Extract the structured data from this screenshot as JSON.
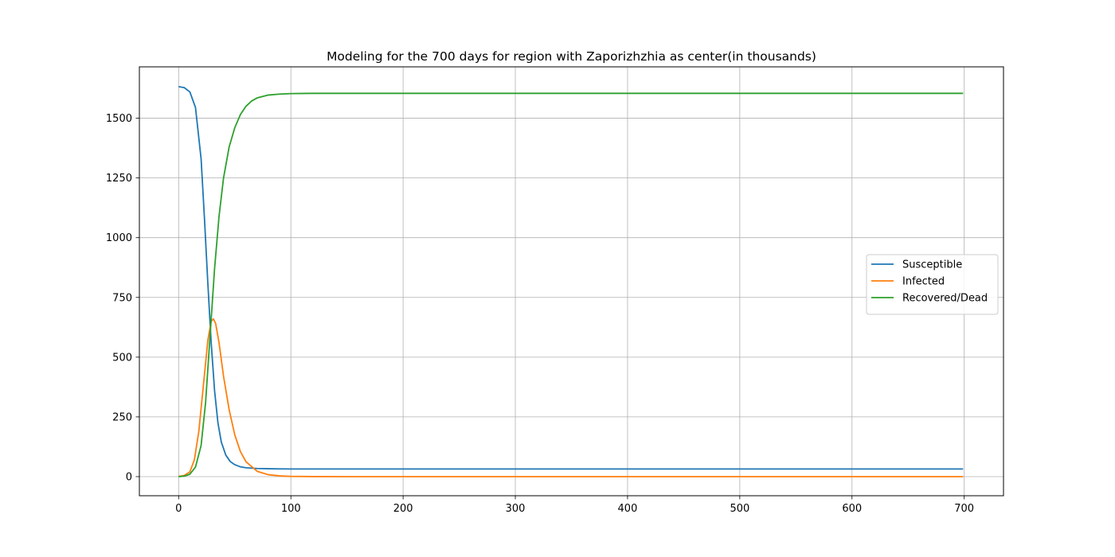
{
  "chart_data": {
    "type": "line",
    "title": "Modeling for the 700 days for region with Zaporizhzhia as center(in thousands)",
    "xlabel": "",
    "ylabel": "",
    "xlim": [
      -35,
      735
    ],
    "ylim": [
      -80,
      1715
    ],
    "xticks": [
      0,
      100,
      200,
      300,
      400,
      500,
      600,
      700
    ],
    "yticks": [
      0,
      250,
      500,
      750,
      1000,
      1250,
      1500
    ],
    "grid": true,
    "legend_position": "center-right",
    "series": [
      {
        "name": "Susceptible",
        "color": "#1f77b4",
        "x": [
          0,
          5,
          10,
          15,
          20,
          23,
          26,
          29,
          32,
          35,
          38,
          42,
          46,
          50,
          55,
          60,
          70,
          80,
          90,
          100,
          120,
          150,
          200,
          300,
          400,
          500,
          600,
          699
        ],
        "y": [
          1632,
          1628,
          1610,
          1545,
          1330,
          1080,
          810,
          560,
          360,
          225,
          145,
          90,
          63,
          50,
          41,
          37,
          34,
          33,
          32.5,
          32,
          32,
          32,
          32,
          32,
          32,
          32,
          32,
          32
        ]
      },
      {
        "name": "Infected",
        "color": "#ff7f0e",
        "x": [
          0,
          5,
          10,
          14,
          18,
          22,
          26,
          29,
          31,
          33,
          36,
          40,
          45,
          50,
          55,
          60,
          70,
          80,
          90,
          100,
          120,
          150,
          200,
          300,
          400,
          500,
          600,
          699
        ],
        "y": [
          1,
          5,
          20,
          70,
          190,
          380,
          570,
          650,
          660,
          640,
          560,
          420,
          280,
          175,
          105,
          62,
          22,
          8,
          3,
          1,
          0.2,
          0,
          0,
          0,
          0,
          0,
          0,
          0
        ]
      },
      {
        "name": "Recovered/Dead",
        "color": "#2ca02c",
        "x": [
          0,
          5,
          10,
          15,
          20,
          24,
          28,
          32,
          36,
          40,
          45,
          50,
          55,
          60,
          65,
          70,
          80,
          90,
          100,
          120,
          150,
          200,
          300,
          400,
          500,
          600,
          699
        ],
        "y": [
          0,
          2,
          10,
          40,
          130,
          310,
          590,
          870,
          1090,
          1250,
          1380,
          1460,
          1515,
          1550,
          1572,
          1585,
          1597,
          1601,
          1603,
          1604,
          1604,
          1604,
          1604,
          1604,
          1604,
          1604,
          1604
        ]
      }
    ]
  }
}
